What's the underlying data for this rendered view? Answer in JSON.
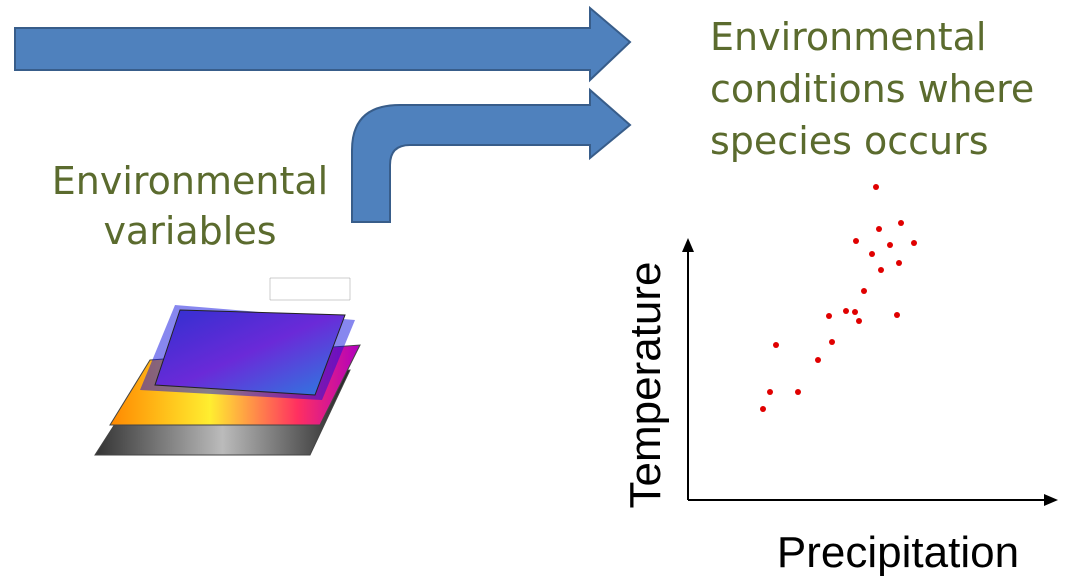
{
  "conditions_label": {
    "lines": [
      "Environmental",
      "conditions where",
      "species occurs"
    ]
  },
  "variables_label": {
    "lines": [
      "Environmental",
      "variables"
    ]
  },
  "plot": {
    "y_axis_label": "Temperature",
    "x_axis_label": "Precipitation"
  }
}
